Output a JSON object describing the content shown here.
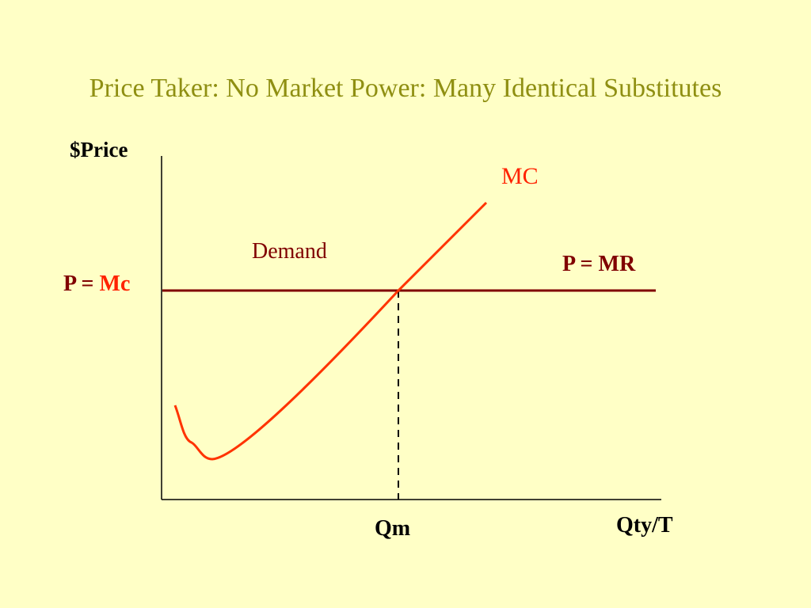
{
  "title": "Price Taker: No Market Power: Many Identical Substitutes",
  "labels": {
    "y_axis": "$Price",
    "x_axis": "Qty/T",
    "mc_curve": "MC",
    "demand": "Demand",
    "price_line": "P = MR",
    "price_level": {
      "prefix": "P =",
      "suffix": "Mc"
    },
    "quantity": "Qm"
  }
}
